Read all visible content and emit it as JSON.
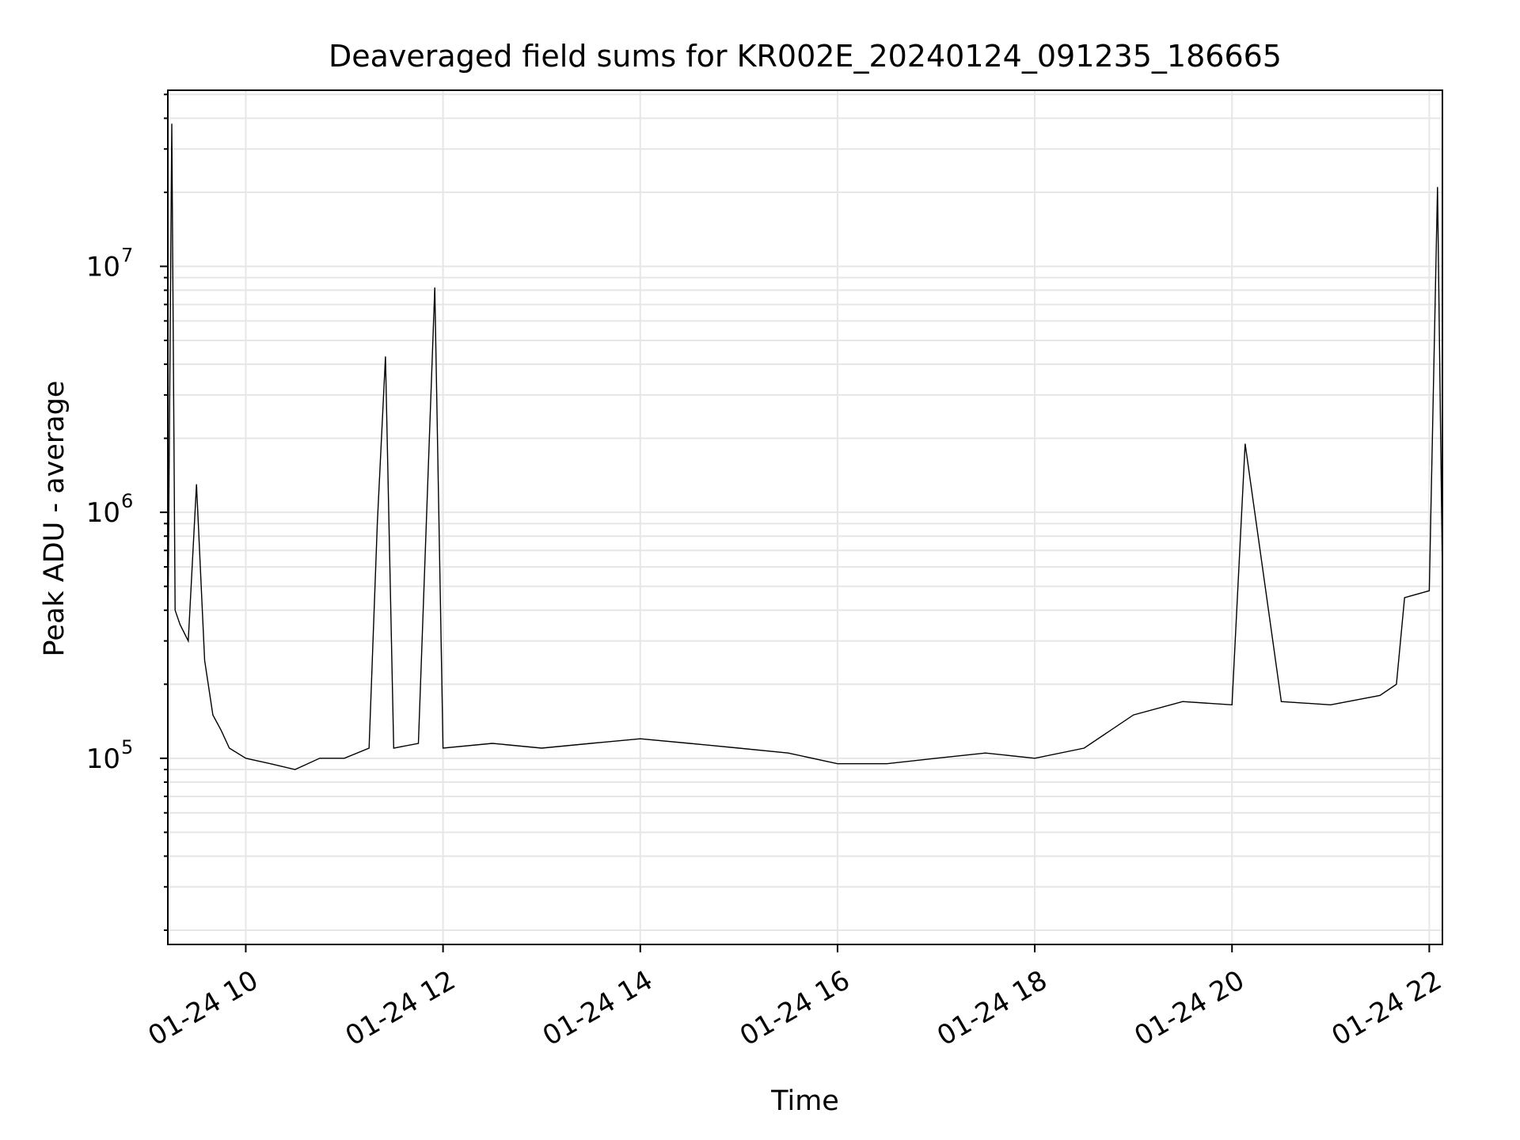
{
  "chart_data": {
    "type": "line",
    "title": "Deaveraged field sums for KR002E_20240124_091235_186665",
    "xlabel": "Time",
    "ylabel": "Peak ADU - average",
    "yscale": "log",
    "ylim": [
      17500,
      52000000
    ],
    "xlim": [
      "2024-01-24 09:12:35",
      "2024-01-24 22:08:00"
    ],
    "grid": true,
    "x_ticks": [
      "2024-01-24 10:00",
      "2024-01-24 12:00",
      "2024-01-24 14:00",
      "2024-01-24 16:00",
      "2024-01-24 18:00",
      "2024-01-24 20:00",
      "2024-01-24 22:00"
    ],
    "x_tick_labels": [
      "01-24 10",
      "01-24 12",
      "01-24 14",
      "01-24 16",
      "01-24 18",
      "01-24 20",
      "01-24 22"
    ],
    "y_ticks": [
      100000,
      1000000,
      10000000
    ],
    "y_tick_labels": [
      {
        "base": "10",
        "exp": "5"
      },
      {
        "base": "10",
        "exp": "6"
      },
      {
        "base": "10",
        "exp": "7"
      }
    ],
    "line_color": "#000000",
    "series": [
      {
        "x": [
          "2024-01-24 09:12:35",
          "2024-01-24 09:15",
          "2024-01-24 09:17",
          "2024-01-24 09:20",
          "2024-01-24 09:25",
          "2024-01-24 09:30",
          "2024-01-24 09:35",
          "2024-01-24 09:40",
          "2024-01-24 09:45",
          "2024-01-24 09:50",
          "2024-01-24 10:00",
          "2024-01-24 10:15",
          "2024-01-24 10:30",
          "2024-01-24 10:45",
          "2024-01-24 11:00",
          "2024-01-24 11:15",
          "2024-01-24 11:20",
          "2024-01-24 11:25",
          "2024-01-24 11:30",
          "2024-01-24 11:45",
          "2024-01-24 11:55",
          "2024-01-24 12:00",
          "2024-01-24 12:30",
          "2024-01-24 13:00",
          "2024-01-24 13:30",
          "2024-01-24 14:00",
          "2024-01-24 14:30",
          "2024-01-24 15:00",
          "2024-01-24 15:30",
          "2024-01-24 16:00",
          "2024-01-24 16:30",
          "2024-01-24 17:00",
          "2024-01-24 17:30",
          "2024-01-24 18:00",
          "2024-01-24 18:30",
          "2024-01-24 19:00",
          "2024-01-24 19:30",
          "2024-01-24 20:00",
          "2024-01-24 20:08",
          "2024-01-24 20:30",
          "2024-01-24 21:00",
          "2024-01-24 21:30",
          "2024-01-24 21:40",
          "2024-01-24 21:45",
          "2024-01-24 22:00",
          "2024-01-24 22:05",
          "2024-01-24 22:08"
        ],
        "y": [
          300000,
          38000000,
          400000,
          350000,
          300000,
          1300000,
          250000,
          150000,
          130000,
          110000,
          100000,
          95000,
          90000,
          100000,
          100000,
          110000,
          900000,
          4300000,
          110000,
          115000,
          8200000,
          110000,
          115000,
          110000,
          115000,
          120000,
          115000,
          110000,
          105000,
          95000,
          95000,
          100000,
          105000,
          100000,
          110000,
          150000,
          170000,
          165000,
          1900000,
          170000,
          165000,
          180000,
          200000,
          450000,
          480000,
          21000000,
          550000
        ]
      }
    ]
  }
}
